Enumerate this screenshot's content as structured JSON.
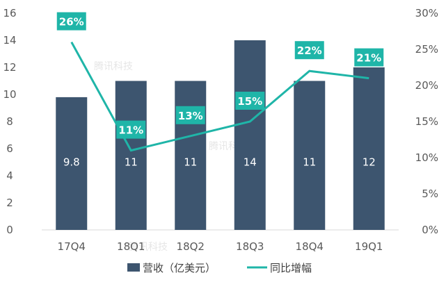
{
  "chart_data": {
    "type": "bar",
    "categories": [
      "17Q4",
      "18Q1",
      "18Q2",
      "18Q3",
      "18Q4",
      "19Q1"
    ],
    "series": [
      {
        "name": "营收（亿美元）",
        "type": "bar",
        "axis": "left",
        "values": [
          9.8,
          11,
          11,
          14,
          11,
          12
        ],
        "labels": [
          "9.8",
          "11",
          "11",
          "14",
          "11",
          "12"
        ],
        "color": "#3d556f"
      },
      {
        "name": "同比增幅",
        "type": "line",
        "axis": "right",
        "values": [
          26,
          11,
          13,
          15,
          22,
          21
        ],
        "labels": [
          "26%",
          "11%",
          "13%",
          "15%",
          "22%",
          "21%"
        ],
        "color": "#1fb5a8"
      }
    ],
    "y_left": {
      "min": 0,
      "max": 16,
      "ticks": [
        "0",
        "2",
        "4",
        "6",
        "8",
        "10",
        "12",
        "14",
        "16"
      ]
    },
    "y_right": {
      "min": 0,
      "max": 30,
      "ticks": [
        "0%",
        "5%",
        "10%",
        "15%",
        "20%",
        "25%",
        "30%"
      ]
    },
    "grid": false,
    "legend_position": "bottom"
  },
  "watermark": "腾讯科技"
}
